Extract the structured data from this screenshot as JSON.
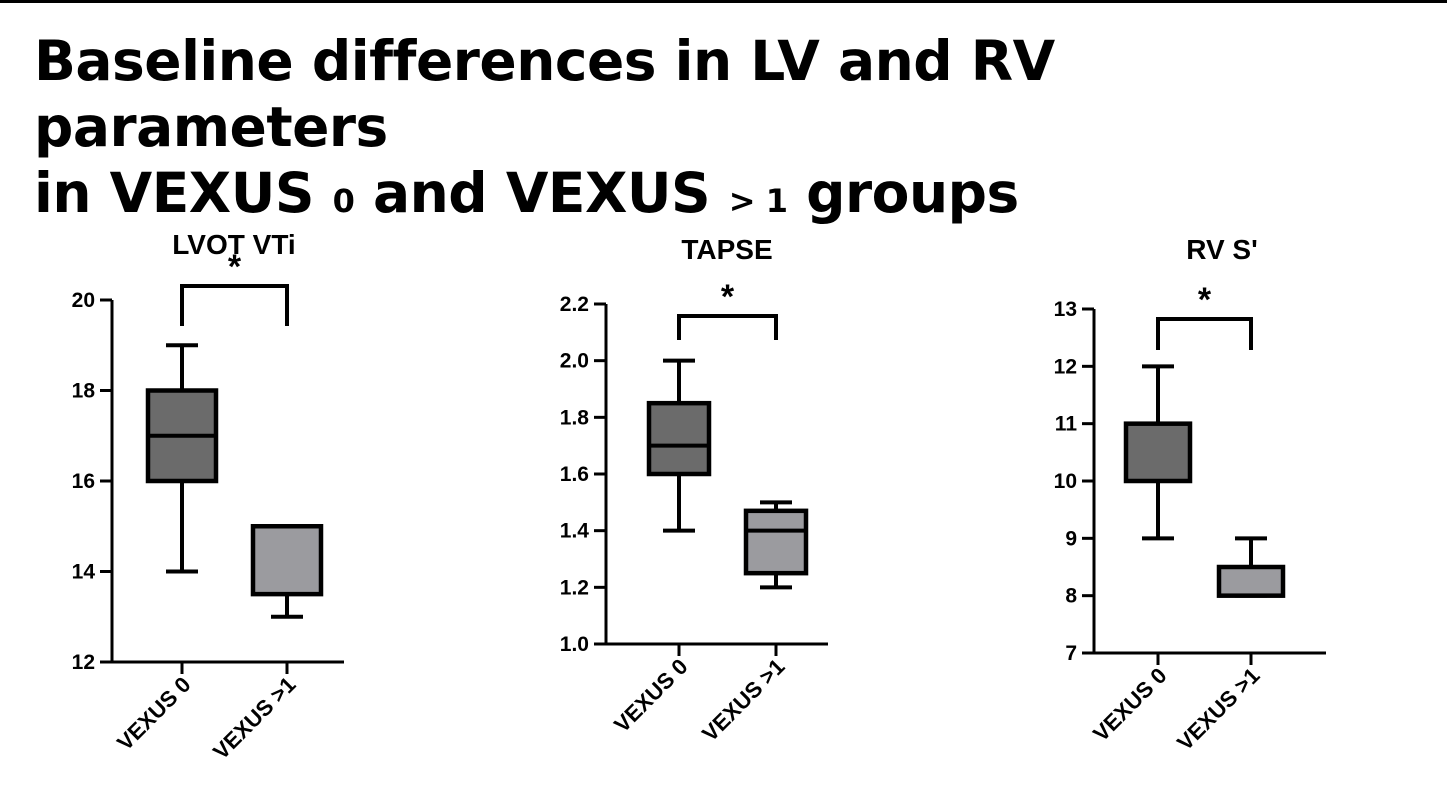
{
  "slide": {
    "title_part1": "Baseline differences in LV and RV parameters",
    "title_part2a": "in VEXUS ",
    "title_sub1": "0",
    "title_part2b": " and VEXUS ",
    "title_sub2": "> 1",
    "title_part2c": " groups"
  },
  "colors": {
    "box_group1": "#6b6b6b",
    "box_group2": "#9b9b9f",
    "stroke": "#000000"
  },
  "chart_data": [
    {
      "type": "box",
      "title": "LVOT VTi",
      "categories": [
        "VEXUS 0",
        "VEXUS >1"
      ],
      "ylim": [
        12,
        20
      ],
      "yticks": [
        12,
        14,
        16,
        18,
        20
      ],
      "tick_decimals": 0,
      "significance": "*",
      "boxes": [
        {
          "min": 14,
          "q1": 16,
          "median": 17,
          "q3": 18,
          "max": 19
        },
        {
          "min": 13,
          "q1": 13.5,
          "median": 15,
          "q3": 15,
          "max": 15
        }
      ]
    },
    {
      "type": "box",
      "title": "TAPSE",
      "categories": [
        "VEXUS 0",
        "VEXUS >1"
      ],
      "ylim": [
        1.0,
        2.2
      ],
      "yticks": [
        1.0,
        1.2,
        1.4,
        1.6,
        1.8,
        2.0,
        2.2
      ],
      "tick_decimals": 1,
      "significance": "*",
      "boxes": [
        {
          "min": 1.4,
          "q1": 1.6,
          "median": 1.7,
          "q3": 1.85,
          "max": 2.0
        },
        {
          "min": 1.2,
          "q1": 1.25,
          "median": 1.4,
          "q3": 1.47,
          "max": 1.5
        }
      ]
    },
    {
      "type": "box",
      "title": "RV S'",
      "categories": [
        "VEXUS 0",
        "VEXUS >1"
      ],
      "ylim": [
        7,
        13
      ],
      "yticks": [
        7,
        8,
        9,
        10,
        11,
        12,
        13
      ],
      "tick_decimals": 0,
      "significance": "*",
      "boxes": [
        {
          "min": 9,
          "q1": 10,
          "median": 11,
          "q3": 11,
          "max": 12
        },
        {
          "min": 8,
          "q1": 8,
          "median": 8,
          "q3": 8.5,
          "max": 9
        }
      ]
    }
  ]
}
